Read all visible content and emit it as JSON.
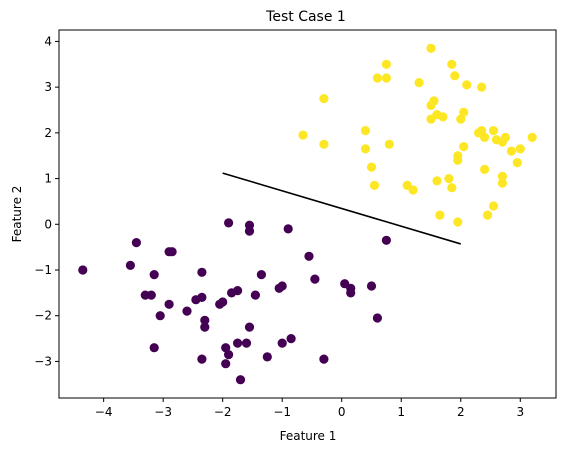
{
  "chart_data": {
    "type": "scatter",
    "title": "Test Case 1",
    "xlabel": "Feature 1",
    "ylabel": "Feature 2",
    "xlim": [
      -4.75,
      3.6
    ],
    "ylim": [
      -3.8,
      4.25
    ],
    "xticks": [
      -4,
      -3,
      -2,
      -1,
      0,
      1,
      2,
      3
    ],
    "yticks": [
      -3,
      -2,
      -1,
      0,
      1,
      2,
      3,
      4
    ],
    "grid": false,
    "colors": {
      "class0": "#440154",
      "class1": "#fde725",
      "line": "#000000"
    },
    "series": [
      {
        "class": 0,
        "points": [
          [
            -4.35,
            -1.0
          ],
          [
            -3.55,
            -0.9
          ],
          [
            -3.45,
            -0.4
          ],
          [
            -3.3,
            -1.55
          ],
          [
            -3.2,
            -1.55
          ],
          [
            -3.15,
            -1.1
          ],
          [
            -3.15,
            -2.7
          ],
          [
            -3.05,
            -2.0
          ],
          [
            -2.9,
            -1.75
          ],
          [
            -2.9,
            -0.6
          ],
          [
            -2.85,
            -0.6
          ],
          [
            -2.6,
            -1.9
          ],
          [
            -2.45,
            -1.65
          ],
          [
            -2.35,
            -1.05
          ],
          [
            -2.35,
            -1.6
          ],
          [
            -2.3,
            -2.1
          ],
          [
            -2.3,
            -2.25
          ],
          [
            -2.35,
            -2.95
          ],
          [
            -2.05,
            -1.75
          ],
          [
            -2.0,
            -1.7
          ],
          [
            -1.95,
            -3.05
          ],
          [
            -1.95,
            -2.7
          ],
          [
            -1.9,
            -2.85
          ],
          [
            -1.9,
            0.03
          ],
          [
            -1.85,
            -1.5
          ],
          [
            -1.75,
            -1.45
          ],
          [
            -1.75,
            -2.6
          ],
          [
            -1.7,
            -3.4
          ],
          [
            -1.6,
            -2.6
          ],
          [
            -1.55,
            -2.25
          ],
          [
            -1.55,
            -0.02
          ],
          [
            -1.55,
            -0.15
          ],
          [
            -1.45,
            -1.55
          ],
          [
            -1.35,
            -1.1
          ],
          [
            -1.25,
            -2.9
          ],
          [
            -1.05,
            -1.4
          ],
          [
            -1.0,
            -1.35
          ],
          [
            -1.0,
            -2.6
          ],
          [
            -0.9,
            -0.1
          ],
          [
            -0.85,
            -2.5
          ],
          [
            -0.55,
            -0.7
          ],
          [
            -0.45,
            -1.2
          ],
          [
            -0.3,
            -2.95
          ],
          [
            0.05,
            -1.3
          ],
          [
            0.15,
            -1.5
          ],
          [
            0.15,
            -1.4
          ],
          [
            0.5,
            -1.35
          ],
          [
            0.6,
            -2.05
          ],
          [
            0.75,
            -0.35
          ]
        ]
      },
      {
        "class": 1,
        "points": [
          [
            -0.65,
            1.95
          ],
          [
            -0.3,
            1.75
          ],
          [
            -0.3,
            2.75
          ],
          [
            0.4,
            2.05
          ],
          [
            0.4,
            1.65
          ],
          [
            0.5,
            1.25
          ],
          [
            0.55,
            0.85
          ],
          [
            0.6,
            3.2
          ],
          [
            0.75,
            3.5
          ],
          [
            0.75,
            3.2
          ],
          [
            0.8,
            1.75
          ],
          [
            1.1,
            0.85
          ],
          [
            1.2,
            0.75
          ],
          [
            1.3,
            3.1
          ],
          [
            1.5,
            3.85
          ],
          [
            1.5,
            2.6
          ],
          [
            1.5,
            2.3
          ],
          [
            1.55,
            2.7
          ],
          [
            1.6,
            2.4
          ],
          [
            1.6,
            0.95
          ],
          [
            1.65,
            0.2
          ],
          [
            1.7,
            2.35
          ],
          [
            1.8,
            1.0
          ],
          [
            1.85,
            3.5
          ],
          [
            1.85,
            0.8
          ],
          [
            1.9,
            3.25
          ],
          [
            1.95,
            1.5
          ],
          [
            1.95,
            1.4
          ],
          [
            1.95,
            0.05
          ],
          [
            2.0,
            2.3
          ],
          [
            2.05,
            2.45
          ],
          [
            2.05,
            1.7
          ],
          [
            2.1,
            3.05
          ],
          [
            2.3,
            2.0
          ],
          [
            2.35,
            2.05
          ],
          [
            2.35,
            3.0
          ],
          [
            2.4,
            1.2
          ],
          [
            2.4,
            1.9
          ],
          [
            2.45,
            0.2
          ],
          [
            2.55,
            2.05
          ],
          [
            2.55,
            0.4
          ],
          [
            2.6,
            1.85
          ],
          [
            2.7,
            1.05
          ],
          [
            2.7,
            0.9
          ],
          [
            2.7,
            1.8
          ],
          [
            2.75,
            1.9
          ],
          [
            2.85,
            1.6
          ],
          [
            2.95,
            1.35
          ],
          [
            3.0,
            1.65
          ],
          [
            3.2,
            1.9
          ]
        ]
      }
    ],
    "line": {
      "from": [
        -2.0,
        1.12
      ],
      "to": [
        2.0,
        -0.43
      ]
    }
  }
}
